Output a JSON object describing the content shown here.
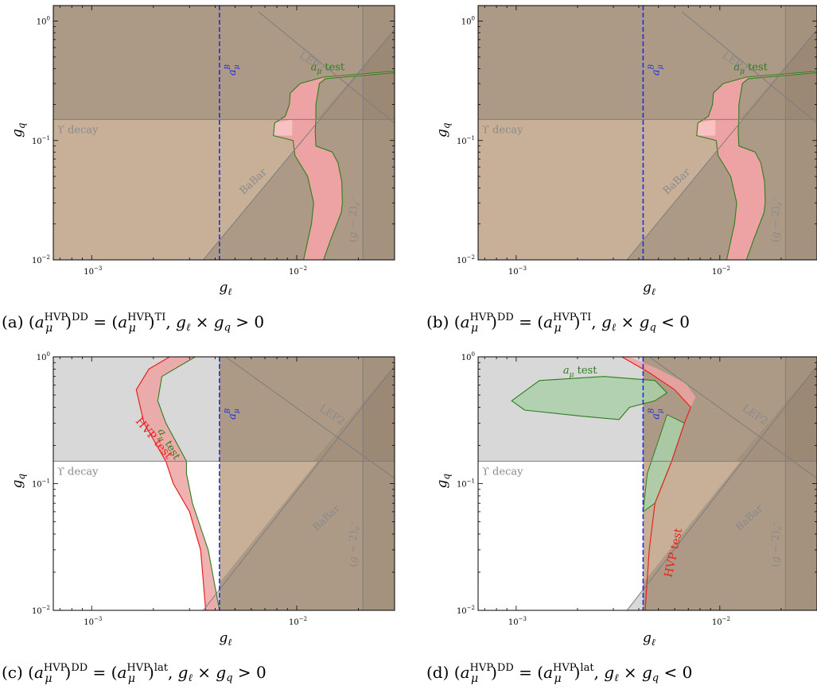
{
  "colors": {
    "excluded_dark": "#ad9a86",
    "excluded_light": "#c8b098",
    "excluded_grey": "#d8d8d8",
    "band_red": "#eda3a3",
    "band_pink": "#f8c2c2",
    "band_green": "#aad0aa",
    "green_line": "#2e7d1f",
    "red_line": "#e8231e",
    "blue_line": "#1f2fe0",
    "grey_line": "#7d7d7d",
    "grey_text": "#8a8a8a"
  },
  "chart_data": [
    {
      "type": "area",
      "id": "a",
      "caption": "(a) (a_μ^HVP)^DD = (a_μ^HVP)^TI, g_ℓ × g_q > 0",
      "xlabel": "g_ℓ",
      "ylabel": "g_q",
      "xscale": "log",
      "yscale": "log",
      "xlim": [
        0.00065,
        0.03
      ],
      "ylim": [
        0.01,
        1.35
      ],
      "xticks": [
        "10^{-3}",
        "10^{-2}"
      ],
      "yticks": [
        "10^{-2}",
        "10^{-1}",
        "10^{0}"
      ],
      "regions": [
        {
          "name": "Υ decay",
          "ymin": 0.15,
          "color": "excluded_dark"
        },
        {
          "name": "BaBar",
          "boundary": [
            [
              0.0035,
              0.01
            ],
            [
              0.03,
              0.85
            ]
          ],
          "color": "excluded_dark"
        },
        {
          "name": "LEP2",
          "boundary": [
            [
              0.0065,
              1.2
            ],
            [
              0.03,
              0.14
            ]
          ]
        },
        {
          "name": "(g−2)_e",
          "x": 0.021
        }
      ],
      "lines": [
        {
          "name": "a_μ^B",
          "x": 0.0042,
          "style": "dashed"
        }
      ],
      "bands": [
        {
          "name": "a_μ test",
          "left": [
            [
              0.0108,
              0.01
            ],
            [
              0.0118,
              0.02
            ],
            [
              0.0121,
              0.03
            ],
            [
              0.0113,
              0.05
            ],
            [
              0.0098,
              0.075
            ],
            [
              0.0096,
              0.1
            ],
            [
              0.0077,
              0.11
            ],
            [
              0.0078,
              0.14
            ],
            [
              0.0088,
              0.16
            ],
            [
              0.0092,
              0.2
            ],
            [
              0.0093,
              0.25
            ],
            [
              0.0104,
              0.3
            ],
            [
              0.0135,
              0.34
            ],
            [
              0.03,
              0.38
            ]
          ],
          "right": [
            [
              0.0135,
              0.01
            ],
            [
              0.0147,
              0.015
            ],
            [
              0.0165,
              0.025
            ],
            [
              0.0167,
              0.03
            ],
            [
              0.0166,
              0.045
            ],
            [
              0.0159,
              0.065
            ],
            [
              0.0149,
              0.08
            ],
            [
              0.0124,
              0.09
            ],
            [
              0.0123,
              0.12
            ],
            [
              0.0124,
              0.15
            ],
            [
              0.0124,
              0.2
            ],
            [
              0.0129,
              0.3
            ],
            [
              0.0138,
              0.33
            ],
            [
              0.03,
              0.37
            ]
          ]
        }
      ],
      "labels": [
        "LEP2",
        "a_μ test",
        "a_μ^B",
        "Υ decay",
        "BaBar",
        "(g − 2)_e−"
      ]
    },
    {
      "type": "area",
      "id": "b",
      "caption": "(b) (a_μ^HVP)^DD = (a_μ^HVP)^TI, g_ℓ × g_q < 0",
      "xlabel": "g_ℓ",
      "ylabel": "g_q",
      "xscale": "log",
      "yscale": "log",
      "xlim": [
        0.00065,
        0.03
      ],
      "ylim": [
        0.01,
        1.35
      ],
      "xticks": [
        "10^{-3}",
        "10^{-2}"
      ],
      "yticks": [
        "10^{-2}",
        "10^{-1}",
        "10^{0}"
      ],
      "regions": [
        {
          "name": "Υ decay",
          "ymin": 0.15,
          "color": "excluded_dark"
        },
        {
          "name": "BaBar",
          "boundary": [
            [
              0.0035,
              0.01
            ],
            [
              0.03,
              0.85
            ]
          ],
          "color": "excluded_dark"
        },
        {
          "name": "LEP2",
          "boundary": [
            [
              0.0065,
              1.2
            ],
            [
              0.03,
              0.14
            ]
          ]
        },
        {
          "name": "(g−2)_e",
          "x": 0.021
        }
      ],
      "lines": [
        {
          "name": "a_μ^B",
          "x": 0.0042,
          "style": "dashed"
        }
      ],
      "bands": [
        {
          "name": "a_μ test",
          "left": [
            [
              0.0108,
              0.01
            ],
            [
              0.0118,
              0.02
            ],
            [
              0.0121,
              0.03
            ],
            [
              0.0113,
              0.05
            ],
            [
              0.0098,
              0.075
            ],
            [
              0.0096,
              0.1
            ],
            [
              0.0077,
              0.11
            ],
            [
              0.0078,
              0.14
            ],
            [
              0.0088,
              0.16
            ],
            [
              0.0092,
              0.2
            ],
            [
              0.0093,
              0.25
            ],
            [
              0.0104,
              0.3
            ],
            [
              0.0135,
              0.34
            ],
            [
              0.03,
              0.38
            ]
          ],
          "right": [
            [
              0.0135,
              0.01
            ],
            [
              0.0147,
              0.015
            ],
            [
              0.0165,
              0.025
            ],
            [
              0.0167,
              0.03
            ],
            [
              0.0166,
              0.045
            ],
            [
              0.0159,
              0.065
            ],
            [
              0.0149,
              0.08
            ],
            [
              0.0124,
              0.09
            ],
            [
              0.0123,
              0.12
            ],
            [
              0.0124,
              0.15
            ],
            [
              0.0124,
              0.2
            ],
            [
              0.0129,
              0.3
            ],
            [
              0.0138,
              0.33
            ],
            [
              0.03,
              0.37
            ]
          ]
        }
      ],
      "labels": [
        "LEP2",
        "a_μ test",
        "a_μ^B",
        "Υ decay",
        "BaBar",
        "(g − 2)_e−"
      ]
    },
    {
      "type": "area",
      "id": "c",
      "caption": "(c) (a_μ^HVP)^DD = (a_μ^HVP)^lat, g_ℓ × g_q > 0",
      "xlabel": "g_ℓ",
      "ylabel": "g_q",
      "xscale": "log",
      "yscale": "log",
      "xlim": [
        0.00065,
        0.03
      ],
      "ylim": [
        0.01,
        1.0
      ],
      "xticks": [
        "10^{-3}",
        "10^{-2}"
      ],
      "yticks": [
        "10^{-2}",
        "10^{-1}",
        "10^{0}"
      ],
      "regions": [
        {
          "name": "Υ decay",
          "ymin": 0.15,
          "color": "excluded_grey"
        },
        {
          "name": "BaBar",
          "boundary": [
            [
              0.0035,
              0.01
            ],
            [
              0.03,
              0.85
            ]
          ]
        },
        {
          "name": "LEP2",
          "boundary": [
            [
              0.0045,
              1.0
            ],
            [
              0.03,
              0.11
            ]
          ]
        },
        {
          "name": "(g−2)_e",
          "x": 0.021
        }
      ],
      "lines": [
        {
          "name": "a_μ^B",
          "x": 0.0042,
          "style": "dashed"
        }
      ],
      "bands": [
        {
          "name": "HVP test",
          "curve": [
            [
              0.0036,
              0.01
            ],
            [
              0.0034,
              0.03
            ],
            [
              0.003,
              0.06
            ],
            [
              0.0025,
              0.1
            ],
            [
              0.0023,
              0.15
            ],
            [
              0.0018,
              0.3
            ],
            [
              0.00165,
              0.55
            ],
            [
              0.0019,
              0.8
            ],
            [
              0.0024,
              1.0
            ]
          ]
        },
        {
          "name": "a_μ test",
          "curve": [
            [
              0.0042,
              0.01
            ],
            [
              0.0037,
              0.03
            ],
            [
              0.0031,
              0.07
            ],
            [
              0.0029,
              0.12
            ],
            [
              0.0029,
              0.15
            ],
            [
              0.0023,
              0.3
            ],
            [
              0.0021,
              0.45
            ],
            [
              0.0022,
              0.7
            ],
            [
              0.0032,
              1.0
            ]
          ]
        }
      ],
      "labels": [
        "HVP test",
        "a_μ test",
        "a_μ^B",
        "LEP2",
        "Υ decay",
        "BaBar",
        "(g − 2)_e−"
      ]
    },
    {
      "type": "area",
      "id": "d",
      "caption": "(d) (a_μ^HVP)^DD = (a_μ^HVP)^lat, g_ℓ × g_q < 0",
      "xlabel": "g_ℓ",
      "ylabel": "g_q",
      "xscale": "log",
      "yscale": "log",
      "xlim": [
        0.00065,
        0.03
      ],
      "ylim": [
        0.01,
        1.0
      ],
      "xticks": [
        "10^{-3}",
        "10^{-2}"
      ],
      "yticks": [
        "10^{-2}",
        "10^{-1}",
        "10^{0}"
      ],
      "regions": [
        {
          "name": "Υ decay",
          "ymin": 0.15,
          "color": "excluded_grey"
        },
        {
          "name": "BaBar",
          "boundary": [
            [
              0.0035,
              0.01
            ],
            [
              0.03,
              0.85
            ]
          ]
        },
        {
          "name": "LEP2",
          "boundary": [
            [
              0.0045,
              1.0
            ],
            [
              0.03,
              0.11
            ]
          ]
        },
        {
          "name": "(g−2)_e",
          "x": 0.021
        }
      ],
      "lines": [
        {
          "name": "a_μ^B",
          "x": 0.0042,
          "style": "dashed"
        }
      ],
      "bands": [
        {
          "name": "HVP test",
          "curve": [
            [
              0.0043,
              0.01
            ],
            [
              0.0045,
              0.03
            ],
            [
              0.0048,
              0.07
            ],
            [
              0.0058,
              0.15
            ],
            [
              0.0067,
              0.3
            ],
            [
              0.0072,
              0.4
            ],
            [
              0.006,
              0.55
            ],
            [
              0.0045,
              0.75
            ],
            [
              0.0033,
              1.0
            ]
          ]
        },
        {
          "name": "a_μ test",
          "island": [
            [
              0.00095,
              0.45
            ],
            [
              0.0013,
              0.65
            ],
            [
              0.0027,
              0.7
            ],
            [
              0.0048,
              0.65
            ],
            [
              0.0055,
              0.52
            ],
            [
              0.0048,
              0.45
            ],
            [
              0.0036,
              0.4
            ],
            [
              0.0032,
              0.32
            ],
            [
              0.0021,
              0.34
            ],
            [
              0.0011,
              0.38
            ]
          ]
        }
      ],
      "labels": [
        "a_μ test",
        "a_μ^B",
        "LEP2",
        "Υ decay",
        "HVP test",
        "BaBar",
        "(g − 2)_e−"
      ]
    }
  ]
}
